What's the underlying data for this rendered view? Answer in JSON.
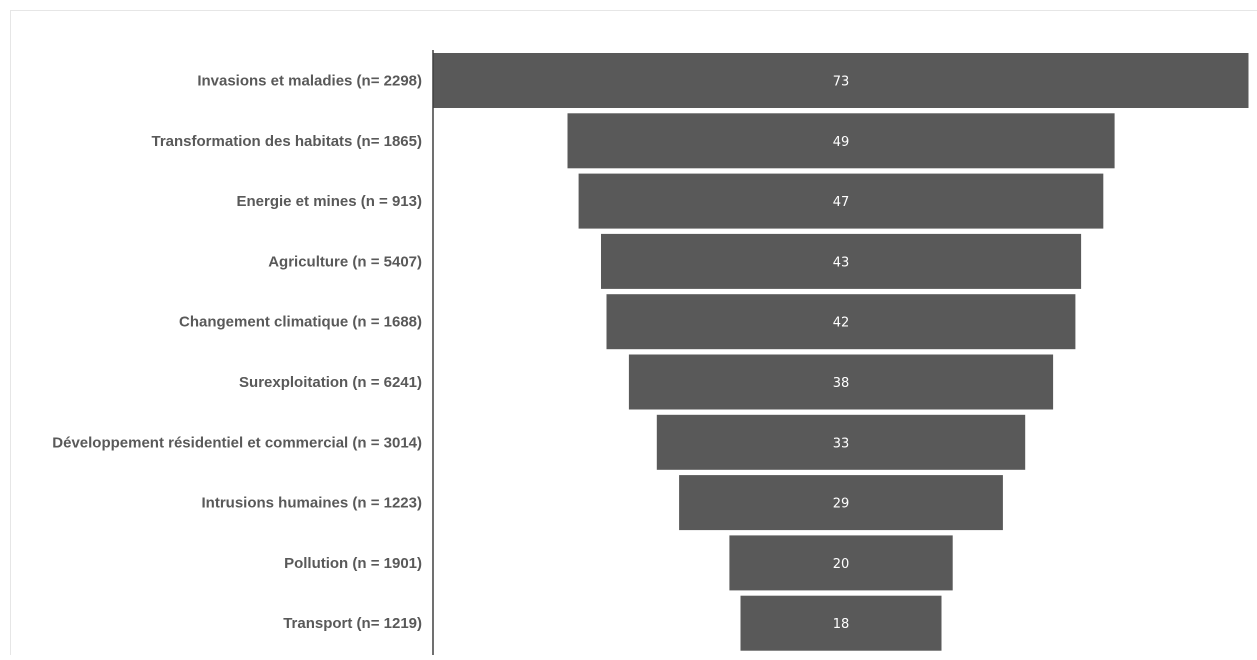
{
  "chart_data": {
    "type": "bar",
    "orientation": "horizontal",
    "style": "funnel",
    "title": "",
    "xlabel": "",
    "ylabel": "",
    "categories": [
      "Invasions et maladies (n= 2298)",
      "Transformation des habitats  (n= 1865)",
      "Energie et mines (n = 913)",
      "Agriculture (n = 5407)",
      "Changement climatique (n = 1688)",
      "Surexploitation (n = 6241)",
      "Développement résidentiel et commercial (n = 3014)",
      "Intrusions humaines (n = 1223)",
      "Pollution (n = 1901)",
      "Transport (n= 1219)"
    ],
    "values": [
      73,
      49,
      47,
      43,
      42,
      38,
      33,
      29,
      20,
      18
    ],
    "data_labels": true,
    "grid": false,
    "legend": "none",
    "bar_color": "#595959",
    "label_color": "#ffffff",
    "category_color": "#595959",
    "axis_color": "#404040"
  }
}
